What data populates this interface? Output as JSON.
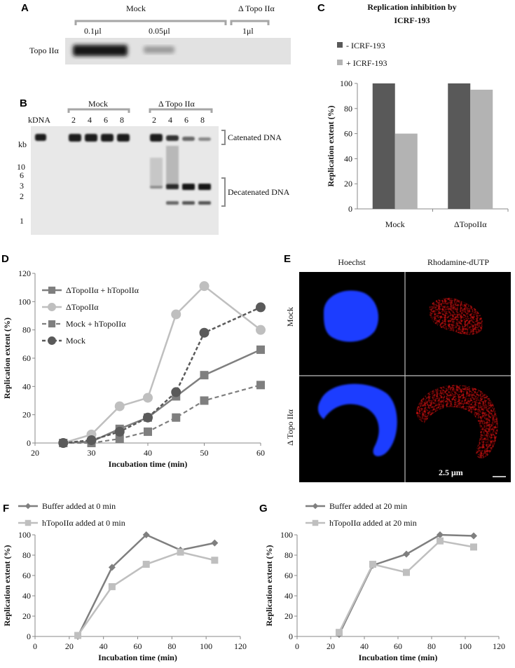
{
  "panels": {
    "A": "A",
    "B": "B",
    "C": "C",
    "D": "D",
    "E": "E",
    "F": "F",
    "G": "G"
  },
  "panel_a": {
    "mock_label": "Mock",
    "delta_label": "Δ Topo IIα",
    "lanes": [
      "0.1μl",
      "0.05μl",
      "1μl"
    ],
    "band_label": "Topo IIα"
  },
  "panel_b": {
    "kdna_label": "kDNA",
    "mock_label": "Mock",
    "delta_label": "Δ Topo IIα",
    "mock_times": [
      "2",
      "4",
      "6",
      "8"
    ],
    "delta_times": [
      "2",
      "4",
      "6",
      "8"
    ],
    "kb_label": "kb",
    "markers": [
      "10",
      "6",
      "3",
      "2",
      "1"
    ],
    "catenated": "Catenated DNA",
    "decatenated": "Decatenated DNA"
  },
  "panel_e": {
    "hoechst": "Hoechst",
    "rhodamine": "Rhodamine-dUTP",
    "row_mock": "Mock",
    "row_delta": "Δ Topo IIα",
    "scale": "2.5 μm"
  },
  "colors": {
    "dark_gray": "#5a5a5a",
    "mid_gray": "#7f7f7f",
    "light_gray": "#bfbfbf",
    "bar_dark": "#595959",
    "bar_light": "#b3b3b3",
    "nucleus_blue": "#1f3cff",
    "nucleus_red": "#e01010"
  },
  "chart_data": [
    {
      "id": "C",
      "type": "bar",
      "title": "Replication inhibition by ICRF-193",
      "categories": [
        "Mock",
        "ΔTopoIIα"
      ],
      "series": [
        {
          "name": "- ICRF-193",
          "values": [
            100,
            100
          ]
        },
        {
          "name": "+ ICRF-193",
          "values": [
            60,
            95
          ]
        }
      ],
      "xlabel": "",
      "ylabel": "Replication extent (%)",
      "ylim": [
        0,
        100
      ],
      "yticks": [
        "0",
        "20",
        "40",
        "60",
        "80",
        "100"
      ],
      "legend": "top-left"
    },
    {
      "id": "D",
      "type": "line",
      "title": "",
      "x": [
        25,
        30,
        35,
        40,
        45,
        50,
        60
      ],
      "series": [
        {
          "name": "ΔTopoIIα + hTopoIIα",
          "values": [
            0,
            1,
            10,
            18,
            33,
            48,
            66
          ]
        },
        {
          "name": "ΔTopoIIα",
          "values": [
            0,
            6,
            26,
            32,
            91,
            111,
            80
          ]
        },
        {
          "name": "Mock + hTopoIIα",
          "values": [
            0,
            0,
            3,
            8,
            18,
            30,
            41
          ]
        },
        {
          "name": "Mock",
          "values": [
            0,
            2,
            8,
            18,
            36,
            78,
            96
          ]
        }
      ],
      "xlabel": "Incubation time (min)",
      "ylabel": "Replication extent (%)",
      "xlim": [
        20,
        60
      ],
      "ylim": [
        0,
        120
      ],
      "xticks": [
        "20",
        "30",
        "40",
        "50",
        "60"
      ],
      "yticks": [
        "0",
        "20",
        "40",
        "60",
        "80",
        "100",
        "120"
      ],
      "legend": "top-left"
    },
    {
      "id": "F",
      "type": "line",
      "title": "",
      "x": [
        25,
        45,
        65,
        85,
        105
      ],
      "series": [
        {
          "name": "Buffer added at 0 min",
          "values": [
            0,
            68,
            100,
            85,
            92
          ]
        },
        {
          "name": "hTopoIIα added at 0 min",
          "values": [
            1,
            49,
            71,
            83,
            75
          ]
        }
      ],
      "xlabel": "Incubation time (min)",
      "ylabel": "Replication extent (%)",
      "xlim": [
        0,
        120
      ],
      "ylim": [
        0,
        100
      ],
      "xticks": [
        "0",
        "20",
        "40",
        "60",
        "80",
        "100",
        "120"
      ],
      "yticks": [
        "0",
        "20",
        "40",
        "60",
        "80",
        "100"
      ],
      "legend": "top-left"
    },
    {
      "id": "G",
      "type": "line",
      "title": "",
      "x": [
        25,
        45,
        65,
        85,
        105
      ],
      "series": [
        {
          "name": "Buffer added at 20 min",
          "values": [
            2,
            70,
            81,
            100,
            99
          ]
        },
        {
          "name": "hTopoIIα added at 20 min",
          "values": [
            4,
            71,
            63,
            94,
            88
          ]
        }
      ],
      "xlabel": "Incubation time (min)",
      "ylabel": "Replication extent (%)",
      "xlim": [
        0,
        120
      ],
      "ylim": [
        0,
        100
      ],
      "xticks": [
        "0",
        "20",
        "40",
        "60",
        "80",
        "100",
        "120"
      ],
      "yticks": [
        "0",
        "20",
        "40",
        "60",
        "80",
        "100"
      ],
      "legend": "top-left"
    }
  ]
}
